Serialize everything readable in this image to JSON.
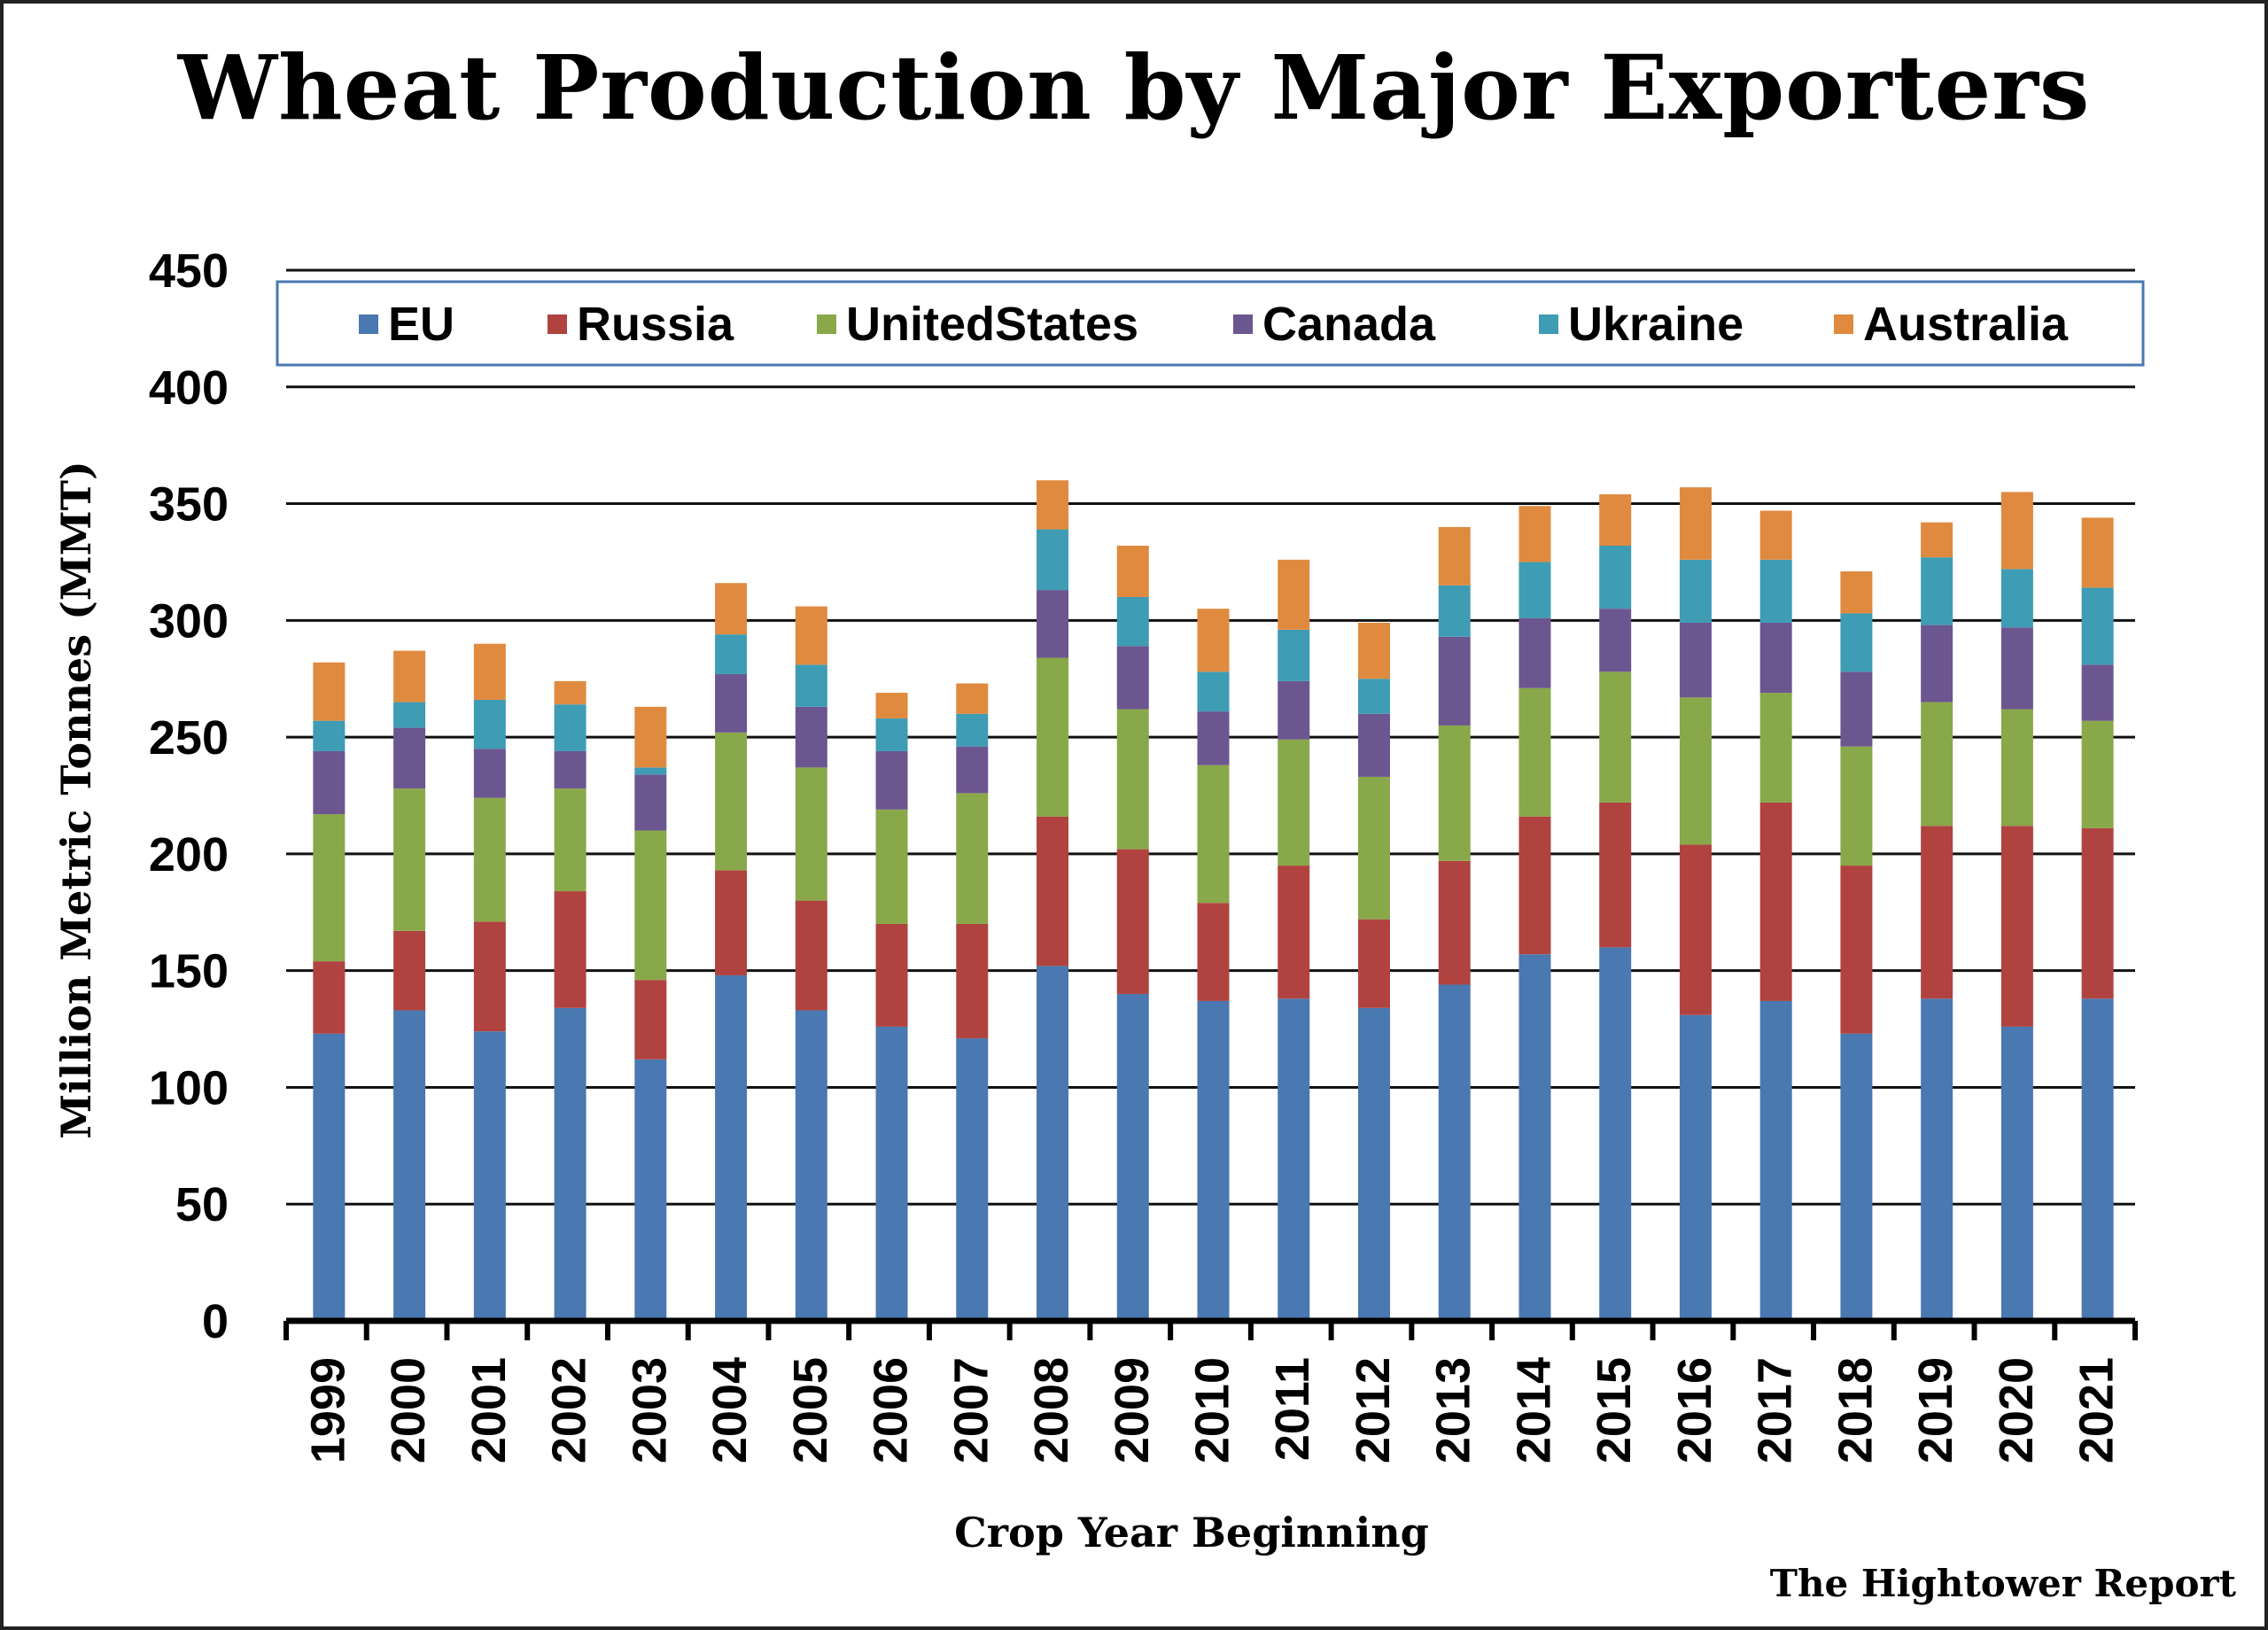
{
  "chart_data": {
    "type": "bar",
    "stacked": true,
    "title": "Wheat Production by Major Exporters",
    "xlabel": "Crop Year Beginning",
    "ylabel": "Million Metric Tonnes (MMT)",
    "ylim": [
      0,
      450
    ],
    "yticks": [
      0,
      50,
      100,
      150,
      200,
      250,
      300,
      350,
      400,
      450
    ],
    "grid": true,
    "legend_position": "top",
    "categories": [
      "1999",
      "2000",
      "2001",
      "2002",
      "2003",
      "2004",
      "2005",
      "2006",
      "2007",
      "2008",
      "2009",
      "2010",
      "2011",
      "2012",
      "2013",
      "2014",
      "2015",
      "2016",
      "2017",
      "2018",
      "2019",
      "2020",
      "2021"
    ],
    "series": [
      {
        "name": "EU",
        "color": "#4a78b0",
        "values": [
          123,
          133,
          124,
          134,
          112,
          148,
          133,
          126,
          121,
          152,
          140,
          137,
          138,
          134,
          144,
          157,
          160,
          131,
          137,
          123,
          138,
          126,
          138
        ]
      },
      {
        "name": "Russia",
        "color": "#b0433f",
        "values": [
          31,
          34,
          47,
          50,
          34,
          45,
          47,
          44,
          49,
          64,
          62,
          42,
          57,
          38,
          53,
          59,
          62,
          73,
          85,
          72,
          74,
          86,
          73
        ]
      },
      {
        "name": "UnitedStates",
        "color": "#89a84a",
        "values": [
          63,
          61,
          53,
          44,
          64,
          59,
          57,
          49,
          56,
          68,
          60,
          59,
          54,
          61,
          58,
          55,
          56,
          63,
          47,
          51,
          53,
          50,
          46
        ]
      },
      {
        "name": "Canada",
        "color": "#6c5690",
        "values": [
          27,
          26,
          21,
          16,
          24,
          25,
          26,
          25,
          20,
          29,
          27,
          23,
          25,
          27,
          38,
          30,
          27,
          32,
          30,
          32,
          33,
          35,
          24
        ]
      },
      {
        "name": "Ukraine",
        "color": "#3e9cb4",
        "values": [
          13,
          11,
          21,
          20,
          3,
          17,
          18,
          14,
          14,
          26,
          21,
          17,
          22,
          15,
          22,
          24,
          27,
          27,
          27,
          25,
          29,
          25,
          33
        ]
      },
      {
        "name": "Australia",
        "color": "#e08a3f",
        "values": [
          25,
          22,
          24,
          10,
          26,
          22,
          25,
          11,
          13,
          21,
          22,
          27,
          30,
          24,
          25,
          24,
          22,
          31,
          21,
          18,
          15,
          33,
          30
        ]
      }
    ]
  },
  "source_note": "The Hightower Report"
}
